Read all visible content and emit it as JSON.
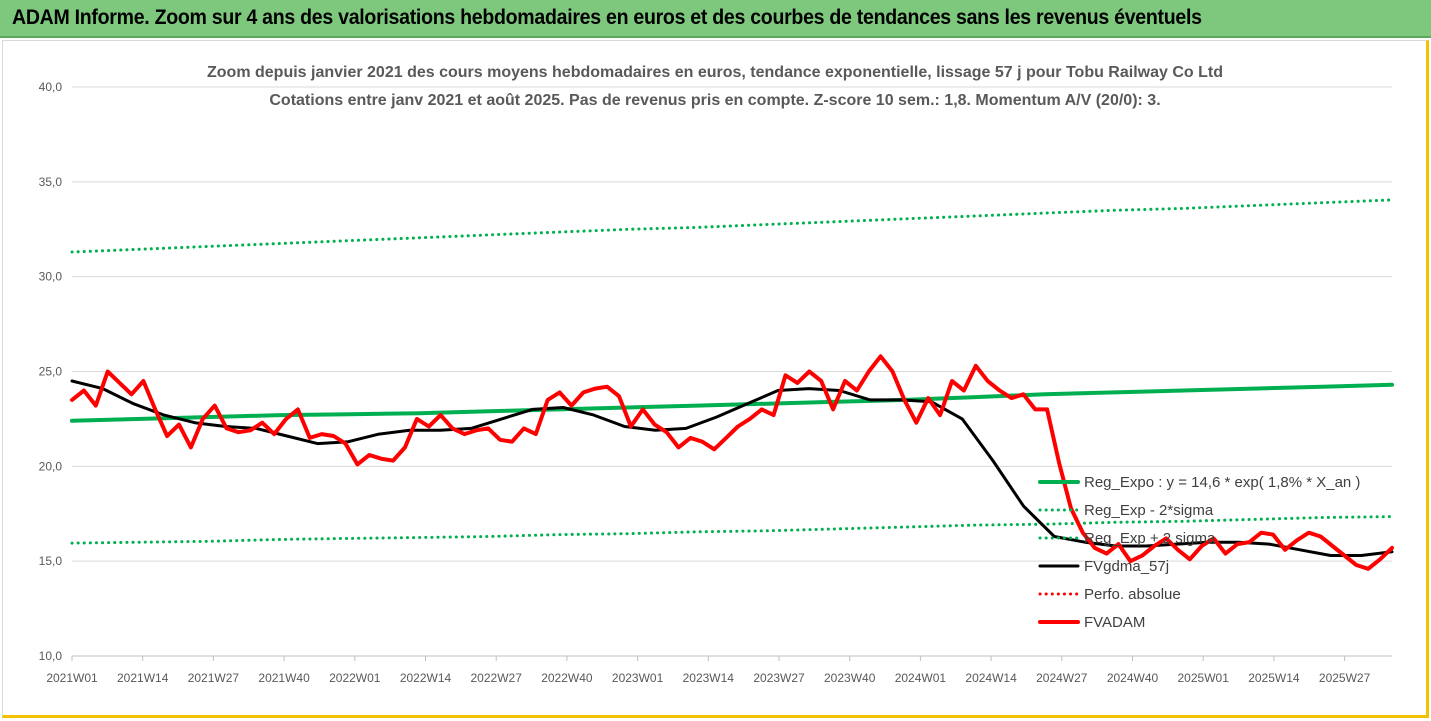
{
  "banner": {
    "title": "ADAM Informe. Zoom sur 4 ans des valorisations hebdomadaires en euros et des courbes de tendances sans les revenus éventuels"
  },
  "chart_data": {
    "type": "line",
    "title": "Zoom depuis janvier 2021 des cours moyens hebdomadaires en euros, tendance exponentielle, lissage 57 j pour Tobu Railway Co Ltd",
    "subtitle": "Cotations entre janv 2021 et août 2025.  Pas de revenus pris en compte. Z-score 10 sem.: 1,8. Momentum A/V (20/0): 3.",
    "ylim": [
      10,
      40
    ],
    "y_ticks": [
      "10,0",
      "15,0",
      "20,0",
      "25,0",
      "30,0",
      "35,0",
      "40,0"
    ],
    "x_ticks": [
      "2021W01",
      "2021W14",
      "2021W27",
      "2021W40",
      "2022W01",
      "2022W14",
      "2022W27",
      "2022W40",
      "2023W01",
      "2023W14",
      "2023W27",
      "2023W40",
      "2024W01",
      "2024W14",
      "2024W27",
      "2024W40",
      "2025W01",
      "2025W14",
      "2025W27"
    ],
    "grid": true,
    "legend_position": "bottom-right",
    "series": [
      {
        "name": "Reg_Expo : y = 14,6 * exp( 1,8% *  X_an )",
        "color": "#00b050",
        "style": "solid",
        "values": [
          22.4,
          22.5,
          22.6,
          22.7,
          22.75,
          22.8,
          22.9,
          23.0,
          23.1,
          23.2,
          23.3,
          23.4,
          23.5,
          23.65,
          23.8,
          23.9,
          24.0,
          24.1,
          24.2,
          24.3
        ]
      },
      {
        "name": "Reg_Exp - 2*sigma",
        "color": "#00b050",
        "style": "dotted",
        "values": [
          15.95,
          16.0,
          16.05,
          16.15,
          16.2,
          16.25,
          16.3,
          16.4,
          16.45,
          16.55,
          16.6,
          16.7,
          16.8,
          16.9,
          16.95,
          17.05,
          17.1,
          17.2,
          17.3,
          17.35
        ]
      },
      {
        "name": "Reg_Exp + 2 sigma",
        "color": "#00b050",
        "style": "dotted",
        "values": [
          31.3,
          31.45,
          31.6,
          31.75,
          31.9,
          32.05,
          32.2,
          32.35,
          32.5,
          32.6,
          32.75,
          32.9,
          33.05,
          33.2,
          33.35,
          33.5,
          33.6,
          33.75,
          33.9,
          34.05
        ]
      },
      {
        "name": "FVgdma_57j",
        "color": "#000000",
        "style": "solid",
        "values": [
          24.5,
          24.1,
          23.3,
          22.7,
          22.3,
          22.1,
          22.0,
          21.6,
          21.2,
          21.3,
          21.7,
          21.9,
          21.9,
          22.0,
          22.5,
          23.0,
          23.1,
          22.7,
          22.1,
          21.9,
          22.0,
          22.6,
          23.3,
          24.0,
          24.1,
          24.0,
          23.5,
          23.5,
          23.4,
          22.5,
          20.3,
          17.9,
          16.3,
          16.0,
          15.8,
          15.8,
          15.9,
          16.0,
          16.0,
          15.9,
          15.6,
          15.3,
          15.3,
          15.5
        ]
      },
      {
        "name": "Perfo. absolue",
        "color": "#ff0000",
        "style": "dotted",
        "values": []
      },
      {
        "name": "FVADAM",
        "color": "#ff0000",
        "style": "solid",
        "values": [
          23.5,
          24.0,
          23.2,
          25.0,
          24.4,
          23.8,
          24.5,
          23.0,
          21.6,
          22.2,
          21.0,
          22.5,
          23.2,
          22.0,
          21.8,
          21.9,
          22.3,
          21.7,
          22.5,
          23.0,
          21.5,
          21.7,
          21.6,
          21.2,
          20.1,
          20.6,
          20.4,
          20.3,
          21.0,
          22.5,
          22.1,
          22.7,
          22.0,
          21.7,
          21.9,
          22.0,
          21.4,
          21.3,
          22.0,
          21.7,
          23.5,
          23.9,
          23.2,
          23.9,
          24.1,
          24.2,
          23.7,
          22.1,
          23.0,
          22.2,
          21.8,
          21.0,
          21.5,
          21.3,
          20.9,
          21.5,
          22.1,
          22.5,
          23.0,
          22.7,
          24.8,
          24.4,
          25.0,
          24.5,
          23.0,
          24.5,
          24.0,
          25.0,
          25.8,
          25.0,
          23.5,
          22.3,
          23.6,
          22.7,
          24.5,
          24.0,
          25.3,
          24.5,
          24.0,
          23.6,
          23.8,
          23.0,
          23.0,
          20.2,
          17.8,
          16.5,
          15.7,
          15.4,
          15.9,
          15.0,
          15.3,
          15.8,
          16.2,
          15.6,
          15.1,
          15.8,
          16.2,
          15.4,
          15.9,
          16.0,
          16.5,
          16.4,
          15.6,
          16.1,
          16.5,
          16.3,
          15.8,
          15.3,
          14.8,
          14.6,
          15.1,
          15.7
        ]
      }
    ]
  }
}
